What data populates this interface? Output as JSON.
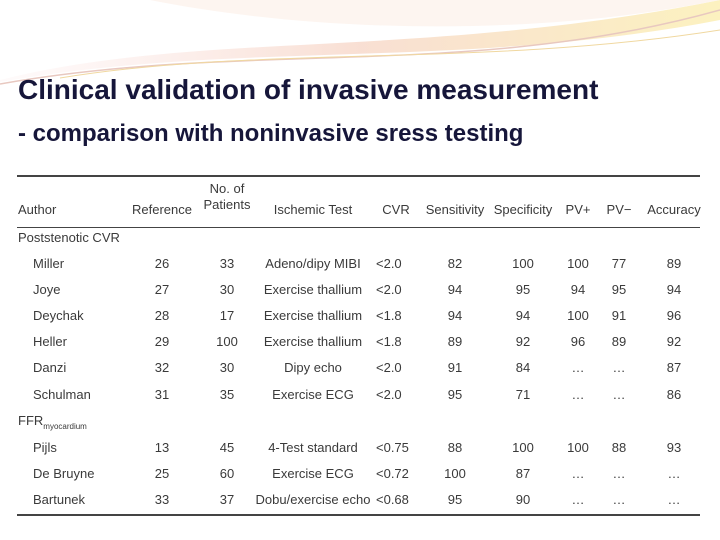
{
  "title": {
    "line1": "Clinical validation of invasive measurement",
    "line2": "- comparison with noninvasive sress testing"
  },
  "table": {
    "columns": [
      "Author",
      "Reference",
      "No. of Patients",
      "Ischemic Test",
      "CVR",
      "Sensitivity",
      "Specificity",
      "PV+",
      "PV−",
      "Accuracy"
    ],
    "sections": [
      {
        "label": "Poststenotic CVR",
        "rows": [
          [
            "Miller",
            "26",
            "33",
            "Adeno/dipy MIBI",
            "<2.0",
            "82",
            "100",
            "100",
            "77",
            "89"
          ],
          [
            "Joye",
            "27",
            "30",
            "Exercise thallium",
            "<2.0",
            "94",
            "95",
            "94",
            "95",
            "94"
          ],
          [
            "Deychak",
            "28",
            "17",
            "Exercise thallium",
            "<1.8",
            "94",
            "94",
            "100",
            "91",
            "96"
          ],
          [
            "Heller",
            "29",
            "100",
            "Exercise thallium",
            "<1.8",
            "89",
            "92",
            "96",
            "89",
            "92"
          ],
          [
            "Danzi",
            "32",
            "30",
            "Dipy echo",
            "<2.0",
            "91",
            "84",
            "…",
            "…",
            "87"
          ],
          [
            "Schulman",
            "31",
            "35",
            "Exercise ECG",
            "<2.0",
            "95",
            "71",
            "…",
            "…",
            "86"
          ]
        ]
      },
      {
        "label": "FFR",
        "label_sub": "myocardium",
        "rows": [
          [
            "Pijls",
            "13",
            "45",
            "4-Test standard",
            "<0.75",
            "88",
            "100",
            "100",
            "88",
            "93"
          ],
          [
            "De Bruyne",
            "25",
            "60",
            "Exercise ECG",
            "<0.72",
            "100",
            "87",
            "…",
            "…",
            "…"
          ],
          [
            "Bartunek",
            "33",
            "37",
            "Dobu/exercise echo",
            "<0.68",
            "95",
            "90",
            "…",
            "…",
            "…"
          ]
        ]
      }
    ]
  }
}
